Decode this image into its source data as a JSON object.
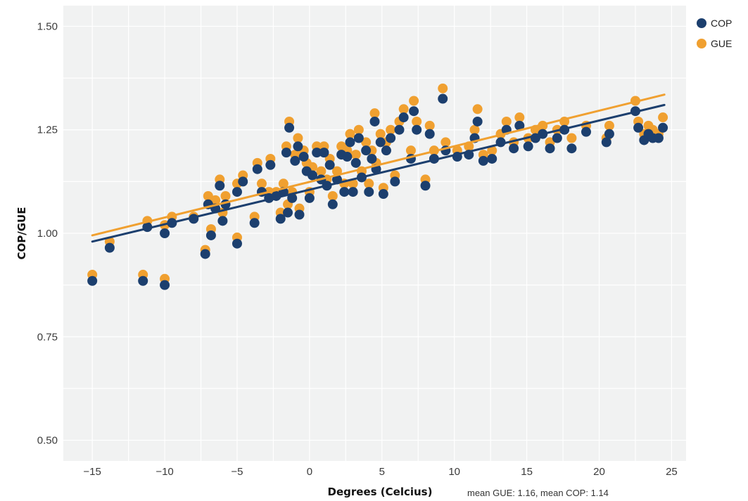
{
  "chart_data": {
    "type": "scatter",
    "xlabel": "Degrees (Celcius)",
    "ylabel": "COP/GUE",
    "note": "mean GUE: 1.16, mean COP: 1.14",
    "xlim": [
      -17,
      26
    ],
    "ylim": [
      0.45,
      1.55
    ],
    "x_ticks": [
      -15,
      -10,
      -5,
      0,
      5,
      10,
      15,
      20,
      25
    ],
    "x_tick_labels": [
      "−15",
      "−10",
      "−5",
      "0",
      "5",
      "10",
      "15",
      "20",
      "25"
    ],
    "y_ticks": [
      0.5,
      0.75,
      1.0,
      1.25,
      1.5
    ],
    "y_tick_labels": [
      "0.50",
      "0.75",
      "1.00",
      "1.25",
      "1.50"
    ],
    "grid": true,
    "legend_position": "top-right",
    "colors": {
      "COP": "#1c3f6e",
      "GUE": "#f0a030",
      "background": "#f1f2f2",
      "grid": "#ffffff"
    },
    "series": [
      {
        "name": "GUE",
        "color": "#f0a030",
        "trend": {
          "x": [
            -15,
            24.5
          ],
          "y": [
            0.995,
            1.335
          ]
        },
        "points": [
          [
            -15,
            0.9
          ],
          [
            -13.8,
            0.98
          ],
          [
            -11.5,
            0.9
          ],
          [
            -11.2,
            1.03
          ],
          [
            -10,
            0.89
          ],
          [
            -10,
            1.02
          ],
          [
            -9.5,
            1.04
          ],
          [
            -8,
            1.04
          ],
          [
            -7.2,
            0.96
          ],
          [
            -7,
            1.09
          ],
          [
            -6.8,
            1.01
          ],
          [
            -6.5,
            1.08
          ],
          [
            -6.2,
            1.13
          ],
          [
            -6,
            1.05
          ],
          [
            -5.8,
            1.09
          ],
          [
            -5,
            1.12
          ],
          [
            -5,
            0.99
          ],
          [
            -4.6,
            1.14
          ],
          [
            -3.8,
            1.04
          ],
          [
            -3.6,
            1.17
          ],
          [
            -3.3,
            1.12
          ],
          [
            -2.8,
            1.1
          ],
          [
            -2.7,
            1.18
          ],
          [
            -2.3,
            1.1
          ],
          [
            -2.0,
            1.05
          ],
          [
            -1.8,
            1.12
          ],
          [
            -1.6,
            1.21
          ],
          [
            -1.5,
            1.07
          ],
          [
            -1.4,
            1.27
          ],
          [
            -1.2,
            1.1
          ],
          [
            -1.0,
            1.19
          ],
          [
            -0.8,
            1.23
          ],
          [
            -0.7,
            1.06
          ],
          [
            -0.4,
            1.2
          ],
          [
            -0.2,
            1.17
          ],
          [
            0,
            1.1
          ],
          [
            0.2,
            1.16
          ],
          [
            0.5,
            1.21
          ],
          [
            0.8,
            1.15
          ],
          [
            1.0,
            1.21
          ],
          [
            1.2,
            1.13
          ],
          [
            1.4,
            1.18
          ],
          [
            1.6,
            1.09
          ],
          [
            1.9,
            1.15
          ],
          [
            2.2,
            1.21
          ],
          [
            2.4,
            1.12
          ],
          [
            2.6,
            1.2
          ],
          [
            2.8,
            1.24
          ],
          [
            3.0,
            1.12
          ],
          [
            3.2,
            1.19
          ],
          [
            3.4,
            1.25
          ],
          [
            3.6,
            1.15
          ],
          [
            3.9,
            1.22
          ],
          [
            4.1,
            1.12
          ],
          [
            4.3,
            1.2
          ],
          [
            4.5,
            1.29
          ],
          [
            4.6,
            1.17
          ],
          [
            4.9,
            1.24
          ],
          [
            5.1,
            1.11
          ],
          [
            5.3,
            1.22
          ],
          [
            5.6,
            1.25
          ],
          [
            5.9,
            1.14
          ],
          [
            6.2,
            1.27
          ],
          [
            6.5,
            1.3
          ],
          [
            7.0,
            1.2
          ],
          [
            7.2,
            1.32
          ],
          [
            7.4,
            1.27
          ],
          [
            8.0,
            1.13
          ],
          [
            8.3,
            1.26
          ],
          [
            8.6,
            1.2
          ],
          [
            9.2,
            1.35
          ],
          [
            9.4,
            1.22
          ],
          [
            10.2,
            1.2
          ],
          [
            11.0,
            1.21
          ],
          [
            11.4,
            1.25
          ],
          [
            11.6,
            1.3
          ],
          [
            12.0,
            1.19
          ],
          [
            12.6,
            1.2
          ],
          [
            13.2,
            1.24
          ],
          [
            13.6,
            1.27
          ],
          [
            14.1,
            1.22
          ],
          [
            14.5,
            1.28
          ],
          [
            15.1,
            1.23
          ],
          [
            15.6,
            1.25
          ],
          [
            16.1,
            1.26
          ],
          [
            16.6,
            1.22
          ],
          [
            17.1,
            1.25
          ],
          [
            17.6,
            1.27
          ],
          [
            18.1,
            1.23
          ],
          [
            19.1,
            1.26
          ],
          [
            20.5,
            1.23
          ],
          [
            20.7,
            1.26
          ],
          [
            22.5,
            1.32
          ],
          [
            22.7,
            1.27
          ],
          [
            23.1,
            1.24
          ],
          [
            23.4,
            1.26
          ],
          [
            23.7,
            1.25
          ],
          [
            24.1,
            1.24
          ],
          [
            24.4,
            1.28
          ]
        ]
      },
      {
        "name": "COP",
        "color": "#1c3f6e",
        "trend": {
          "x": [
            -15,
            24.5
          ],
          "y": [
            0.98,
            1.31
          ]
        },
        "points": [
          [
            -15,
            0.885
          ],
          [
            -13.8,
            0.965
          ],
          [
            -11.5,
            0.885
          ],
          [
            -11.2,
            1.015
          ],
          [
            -10,
            0.875
          ],
          [
            -10,
            1.0
          ],
          [
            -9.5,
            1.025
          ],
          [
            -8,
            1.035
          ],
          [
            -7.2,
            0.95
          ],
          [
            -7,
            1.07
          ],
          [
            -6.8,
            0.995
          ],
          [
            -6.5,
            1.06
          ],
          [
            -6.2,
            1.115
          ],
          [
            -6,
            1.03
          ],
          [
            -5.8,
            1.07
          ],
          [
            -5,
            1.1
          ],
          [
            -5,
            0.975
          ],
          [
            -4.6,
            1.125
          ],
          [
            -3.8,
            1.025
          ],
          [
            -3.6,
            1.155
          ],
          [
            -3.3,
            1.1
          ],
          [
            -2.8,
            1.085
          ],
          [
            -2.7,
            1.165
          ],
          [
            -2.3,
            1.09
          ],
          [
            -2.0,
            1.035
          ],
          [
            -1.8,
            1.1
          ],
          [
            -1.6,
            1.195
          ],
          [
            -1.5,
            1.05
          ],
          [
            -1.4,
            1.255
          ],
          [
            -1.2,
            1.085
          ],
          [
            -1.0,
            1.175
          ],
          [
            -0.8,
            1.21
          ],
          [
            -0.7,
            1.045
          ],
          [
            -0.4,
            1.185
          ],
          [
            -0.2,
            1.15
          ],
          [
            0,
            1.085
          ],
          [
            0.2,
            1.14
          ],
          [
            0.5,
            1.195
          ],
          [
            0.8,
            1.13
          ],
          [
            1.0,
            1.195
          ],
          [
            1.2,
            1.115
          ],
          [
            1.4,
            1.165
          ],
          [
            1.6,
            1.07
          ],
          [
            1.9,
            1.13
          ],
          [
            2.2,
            1.19
          ],
          [
            2.4,
            1.1
          ],
          [
            2.6,
            1.185
          ],
          [
            2.8,
            1.22
          ],
          [
            3.0,
            1.1
          ],
          [
            3.2,
            1.17
          ],
          [
            3.4,
            1.23
          ],
          [
            3.6,
            1.135
          ],
          [
            3.9,
            1.2
          ],
          [
            4.1,
            1.1
          ],
          [
            4.3,
            1.18
          ],
          [
            4.5,
            1.27
          ],
          [
            4.6,
            1.155
          ],
          [
            4.9,
            1.22
          ],
          [
            5.1,
            1.095
          ],
          [
            5.3,
            1.2
          ],
          [
            5.6,
            1.23
          ],
          [
            5.9,
            1.125
          ],
          [
            6.2,
            1.25
          ],
          [
            6.5,
            1.28
          ],
          [
            7.0,
            1.18
          ],
          [
            7.2,
            1.295
          ],
          [
            7.4,
            1.25
          ],
          [
            8.0,
            1.115
          ],
          [
            8.3,
            1.24
          ],
          [
            8.6,
            1.18
          ],
          [
            9.2,
            1.325
          ],
          [
            9.4,
            1.2
          ],
          [
            10.2,
            1.185
          ],
          [
            11.0,
            1.19
          ],
          [
            11.4,
            1.23
          ],
          [
            11.6,
            1.27
          ],
          [
            12.0,
            1.175
          ],
          [
            12.6,
            1.18
          ],
          [
            13.2,
            1.22
          ],
          [
            13.6,
            1.25
          ],
          [
            14.1,
            1.205
          ],
          [
            14.5,
            1.26
          ],
          [
            15.1,
            1.21
          ],
          [
            15.6,
            1.23
          ],
          [
            16.1,
            1.24
          ],
          [
            16.6,
            1.205
          ],
          [
            17.1,
            1.23
          ],
          [
            17.6,
            1.25
          ],
          [
            18.1,
            1.205
          ],
          [
            19.1,
            1.245
          ],
          [
            20.5,
            1.22
          ],
          [
            20.7,
            1.24
          ],
          [
            22.5,
            1.295
          ],
          [
            22.7,
            1.255
          ],
          [
            23.1,
            1.225
          ],
          [
            23.4,
            1.24
          ],
          [
            23.7,
            1.23
          ],
          [
            24.1,
            1.23
          ],
          [
            24.4,
            1.255
          ]
        ]
      }
    ]
  }
}
